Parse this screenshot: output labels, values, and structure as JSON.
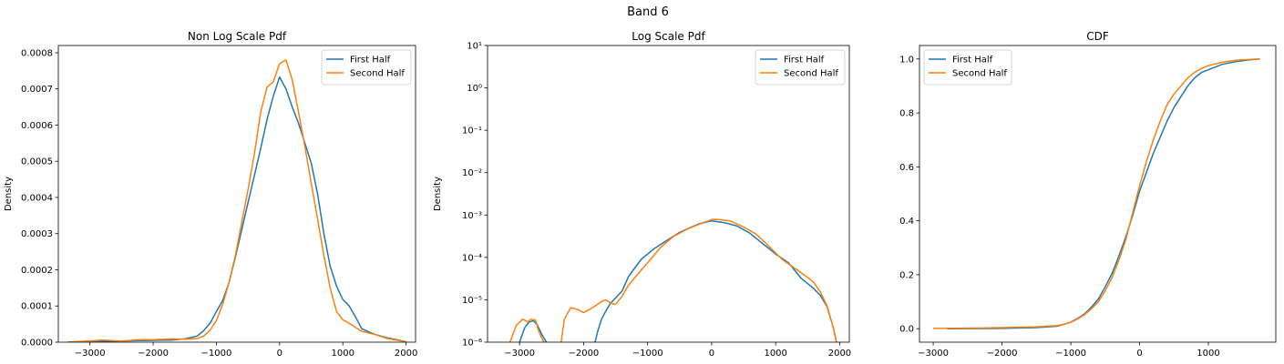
{
  "figure": {
    "suptitle": "Band 6"
  },
  "colors": {
    "first": "#1f77b4",
    "second": "#ff7f0e",
    "frame": "#000000"
  },
  "chart_data": [
    {
      "type": "line",
      "title": "Non Log Scale Pdf",
      "xlabel": "",
      "ylabel": "Density",
      "xlim": [
        -3500,
        2150
      ],
      "ylim": [
        0,
        0.00082
      ],
      "yscale": "linear",
      "xticks": [
        -3000,
        -2000,
        -1000,
        0,
        1000,
        2000
      ],
      "xtick_labels": [
        "−3000",
        "−2000",
        "−1000",
        "0",
        "1000",
        "2000"
      ],
      "yticks": [
        0,
        0.0001,
        0.0002,
        0.0003,
        0.0004,
        0.0005,
        0.0006,
        0.0007,
        0.0008
      ],
      "ytick_labels": [
        "0.0000",
        "0.0001",
        "0.0002",
        "0.0003",
        "0.0004",
        "0.0005",
        "0.0006",
        "0.0007",
        "0.0008"
      ],
      "legend": "top-right",
      "series": [
        {
          "name": "First Half",
          "x": [
            -3350,
            -3000,
            -2700,
            -2300,
            -2000,
            -1700,
            -1500,
            -1300,
            -1200,
            -1100,
            -1000,
            -900,
            -800,
            -700,
            -600,
            -500,
            -400,
            -300,
            -200,
            -100,
            0,
            100,
            200,
            300,
            400,
            500,
            600,
            700,
            800,
            900,
            1000,
            1100,
            1200,
            1300,
            1500,
            1700,
            1900,
            2000
          ],
          "y": [
            0.0,
            3e-06,
            2e-06,
            4e-06,
            5e-06,
            6e-06,
            9e-06,
            1.7e-05,
            3.2e-05,
            5.2e-05,
            8.5e-05,
            0.000115,
            0.000165,
            0.000235,
            0.00031,
            0.000385,
            0.00046,
            0.000535,
            0.000615,
            0.00068,
            0.000733,
            0.0007,
            0.00065,
            0.000605,
            0.00055,
            0.000495,
            0.00041,
            0.0003,
            0.00021,
            0.000155,
            0.000118,
            0.0001,
            7e-05,
            3.7e-05,
            2.2e-05,
            1.2e-05,
            5e-06,
            1e-06
          ]
        },
        {
          "name": "Second Half",
          "x": [
            -3350,
            -3000,
            -2800,
            -2500,
            -2200,
            -2000,
            -1700,
            -1500,
            -1300,
            -1200,
            -1100,
            -1000,
            -900,
            -800,
            -700,
            -600,
            -500,
            -400,
            -300,
            -200,
            -100,
            0,
            100,
            200,
            300,
            400,
            500,
            600,
            700,
            800,
            900,
            1000,
            1100,
            1200,
            1300,
            1500,
            1700,
            1900,
            2000
          ],
          "y": [
            0.0,
            3e-06,
            6e-06,
            3e-06,
            7e-06,
            7e-06,
            9e-06,
            8e-06,
            1e-05,
            1.7e-05,
            3.3e-05,
            6e-05,
            0.000105,
            0.000165,
            0.00024,
            0.00033,
            0.00042,
            0.00052,
            0.000635,
            0.000705,
            0.00072,
            0.00077,
            0.00078,
            0.000725,
            0.000635,
            0.00054,
            0.00044,
            0.00034,
            0.00024,
            0.00015,
            8.5e-05,
            6.2e-05,
            5.2e-05,
            4.1e-05,
            3e-05,
            2.2e-05,
            1e-05,
            4e-06,
            1e-06
          ]
        }
      ]
    },
    {
      "type": "line",
      "title": "Log Scale Pdf",
      "xlabel": "",
      "ylabel": "Density",
      "xlim": [
        -3500,
        2150
      ],
      "ylim": [
        1e-06,
        10
      ],
      "yscale": "log",
      "xticks": [
        -3000,
        -2000,
        -1000,
        0,
        1000,
        2000
      ],
      "xtick_labels": [
        "−3000",
        "−2000",
        "−1000",
        "0",
        "1000",
        "2000"
      ],
      "yticks": [
        1e-06,
        1e-05,
        0.0001,
        0.001,
        0.01,
        0.1,
        1,
        10
      ],
      "ytick_labels": [
        "10⁻⁶",
        "10⁻⁵",
        "10⁻⁴",
        "10⁻³",
        "10⁻²",
        "10⁻¹",
        "10⁰",
        "10¹"
      ],
      "legend": "top-right",
      "series": [
        {
          "name": "First Half",
          "x": [
            -3000,
            -2920,
            -2850,
            -2780,
            -2720,
            -2650,
            -2580,
            -2520,
            -1820,
            -1780,
            -1720,
            -1650,
            -1580,
            -1500,
            -1400,
            -1300,
            -1100,
            -1000,
            -900,
            -700,
            -500,
            -300,
            -200,
            0,
            200,
            400,
            600,
            800,
            900,
            1000,
            1200,
            1400,
            1600,
            1700,
            1800,
            1850,
            1900,
            1950
          ],
          "y": [
            1e-06,
            2.2e-06,
            3e-06,
            3.2e-06,
            2.5e-06,
            1.5e-06,
            1e-06,
            6e-07,
            1e-06,
            1.8e-06,
            3.5e-06,
            5.5e-06,
            8.3e-06,
            1.1e-05,
            1.6e-05,
            3.5e-05,
            9e-05,
            0.00012,
            0.00016,
            0.00025,
            0.00039,
            0.00053,
            0.00062,
            0.00073,
            0.00066,
            0.00055,
            0.00037,
            0.00021,
            0.00016,
            0.00012,
            7.5e-05,
            3.2e-05,
            1.8e-05,
            1.25e-05,
            7e-06,
            4e-06,
            2.2e-06,
            1e-06
          ]
        },
        {
          "name": "Second Half",
          "x": [
            -3150,
            -3050,
            -2950,
            -2870,
            -2820,
            -2750,
            -2700,
            -2620,
            -2500,
            -2350,
            -2300,
            -2200,
            -2100,
            -2000,
            -1900,
            -1800,
            -1700,
            -1650,
            -1550,
            -1500,
            -1400,
            -1300,
            -1100,
            -1000,
            -800,
            -600,
            -400,
            -200,
            0,
            100,
            300,
            500,
            700,
            900,
            1100,
            1300,
            1500,
            1600,
            1700,
            1800,
            1850,
            1900,
            1950
          ],
          "y": [
            1e-06,
            2.5e-06,
            3.5e-06,
            3e-06,
            3.5e-06,
            3.3e-06,
            1.8e-06,
            1e-06,
            6e-07,
            1e-06,
            3.5e-06,
            6.5e-06,
            6e-06,
            5e-06,
            6e-06,
            7.5e-06,
            9.5e-06,
            9.8e-06,
            8e-06,
            7.8e-06,
            1.2e-05,
            2.2e-05,
            5e-05,
            7.5e-05,
            0.00017,
            0.00031,
            0.00045,
            0.0006,
            0.00078,
            0.00079,
            0.00072,
            0.00052,
            0.00035,
            0.00018,
            9e-05,
            5.5e-05,
            3.4e-05,
            2.5e-05,
            1.5e-05,
            7.3e-06,
            4e-06,
            2.2e-06,
            1e-06
          ]
        }
      ]
    },
    {
      "type": "line",
      "title": "CDF",
      "xlabel": "",
      "ylabel": "",
      "xlim": [
        -3200,
        1980
      ],
      "ylim": [
        -0.05,
        1.05
      ],
      "yscale": "linear",
      "xticks": [
        -3000,
        -2000,
        -1000,
        0,
        1000
      ],
      "xtick_labels": [
        "−3000",
        "−2000",
        "−1000",
        "0",
        "1000"
      ],
      "yticks": [
        0,
        0.2,
        0.4,
        0.6,
        0.8,
        1.0
      ],
      "ytick_labels": [
        "0.0",
        "0.2",
        "0.4",
        "0.6",
        "0.8",
        "1.0"
      ],
      "legend": "top-left",
      "series": [
        {
          "name": "First Half",
          "x": [
            -2800,
            -2000,
            -1500,
            -1200,
            -1100,
            -1000,
            -900,
            -800,
            -700,
            -600,
            -500,
            -400,
            -300,
            -200,
            -100,
            0,
            100,
            200,
            300,
            400,
            500,
            600,
            700,
            800,
            900,
            1000,
            1200,
            1400,
            1600,
            1750
          ],
          "y": [
            0.0,
            0.001,
            0.004,
            0.009,
            0.016,
            0.025,
            0.038,
            0.055,
            0.08,
            0.11,
            0.155,
            0.205,
            0.27,
            0.34,
            0.42,
            0.51,
            0.58,
            0.65,
            0.71,
            0.77,
            0.82,
            0.86,
            0.9,
            0.93,
            0.95,
            0.96,
            0.98,
            0.99,
            0.997,
            1.0
          ]
        },
        {
          "name": "Second Half",
          "x": [
            -3000,
            -2500,
            -2000,
            -1500,
            -1200,
            -1100,
            -1000,
            -900,
            -800,
            -700,
            -600,
            -500,
            -400,
            -300,
            -200,
            -100,
            0,
            100,
            200,
            300,
            400,
            500,
            600,
            700,
            800,
            900,
            1000,
            1200,
            1400,
            1600,
            1750
          ],
          "y": [
            0.001,
            0.002,
            0.004,
            0.007,
            0.011,
            0.016,
            0.024,
            0.036,
            0.052,
            0.074,
            0.1,
            0.14,
            0.19,
            0.255,
            0.33,
            0.43,
            0.53,
            0.62,
            0.7,
            0.77,
            0.83,
            0.87,
            0.9,
            0.93,
            0.95,
            0.965,
            0.975,
            0.988,
            0.995,
            0.998,
            1.0
          ]
        }
      ]
    }
  ]
}
